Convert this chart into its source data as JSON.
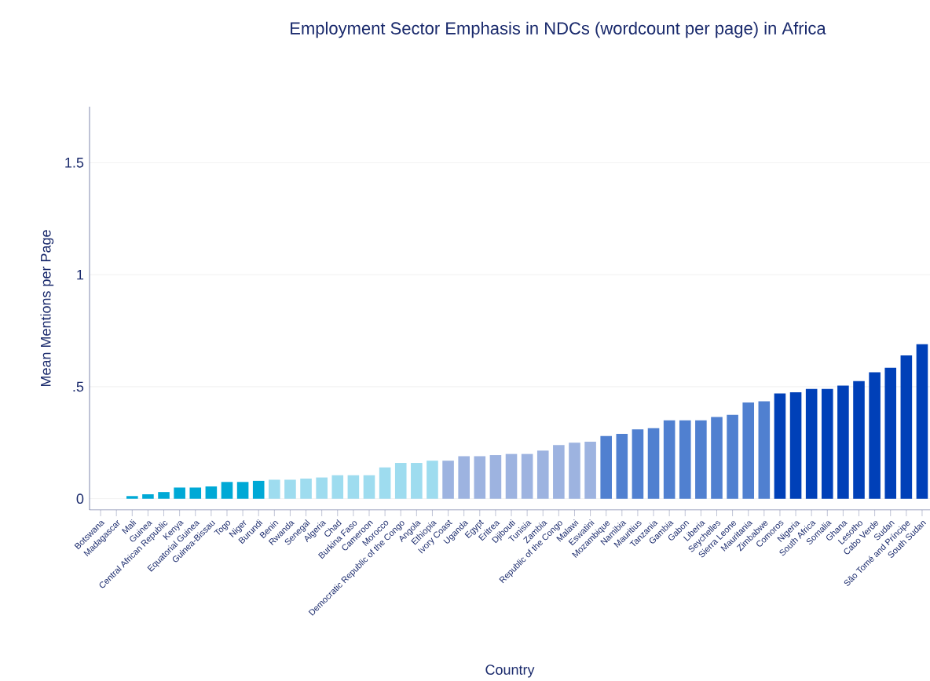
{
  "chart_data": {
    "type": "bar",
    "title": "Employment Sector Emphasis in NDCs (wordcount per page) in Africa",
    "xlabel": "Country",
    "ylabel": "Mean Mentions per Page",
    "categories": [
      "Botswana",
      "Madagascar",
      "Mali",
      "Guinea",
      "Central African Republic",
      "Kenya",
      "Equatorial Guinea",
      "Guinea-Bissau",
      "Togo",
      "Niger",
      "Burundi",
      "Benin",
      "Rwanda",
      "Senegal",
      "Algeria",
      "Chad",
      "Burkina Faso",
      "Cameroon",
      "Morocco",
      "Democratic Republic of the Congo",
      "Angola",
      "Ethiopia",
      "Ivory Coast",
      "Uganda",
      "Egypt",
      "Eritrea",
      "Djibouti",
      "Tunisia",
      "Zambia",
      "Republic of the Congo",
      "Malawi",
      "Eswatini",
      "Mozambique",
      "Namibia",
      "Mauritius",
      "Tanzania",
      "Gambia",
      "Gabon",
      "Liberia",
      "Seychelles",
      "Sierra Leone",
      "Mauritania",
      "Zimbabwe",
      "Comoros",
      "Nigeria",
      "South Africa",
      "Somalia",
      "Ghana",
      "Lesotho",
      "Cabo Verde",
      "Sudan",
      "São Tomé and Príncipe",
      "South Sudan"
    ],
    "values": [
      0,
      0,
      0.012,
      0.02,
      0.03,
      0.05,
      0.05,
      0.055,
      0.075,
      0.075,
      0.08,
      0.085,
      0.085,
      0.09,
      0.095,
      0.105,
      0.105,
      0.105,
      0.14,
      0.16,
      0.16,
      0.17,
      0.17,
      0.19,
      0.19,
      0.195,
      0.2,
      0.2,
      0.215,
      0.24,
      0.25,
      0.255,
      0.28,
      0.29,
      0.31,
      0.315,
      0.35,
      0.35,
      0.35,
      0.365,
      0.375,
      0.43,
      0.435,
      0.47,
      0.475,
      0.49,
      0.49,
      0.505,
      0.525,
      0.565,
      0.585,
      0.64,
      0.69
    ],
    "colors": [
      "#00a9d6",
      "#00a9d6",
      "#00a9d6",
      "#00a9d6",
      "#00a9d6",
      "#00a9d6",
      "#00a9d6",
      "#00a9d6",
      "#00a9d6",
      "#00a9d6",
      "#00a9d6",
      "#9edcef",
      "#9edcef",
      "#9edcef",
      "#9edcef",
      "#9edcef",
      "#9edcef",
      "#9edcef",
      "#9edcef",
      "#9edcef",
      "#9edcef",
      "#9edcef",
      "#9db3e0",
      "#9db3e0",
      "#9db3e0",
      "#9db3e0",
      "#9db3e0",
      "#9db3e0",
      "#9db3e0",
      "#9db3e0",
      "#9db3e0",
      "#9db3e0",
      "#5080d0",
      "#5080d0",
      "#5080d0",
      "#5080d0",
      "#5080d0",
      "#5080d0",
      "#5080d0",
      "#5080d0",
      "#5080d0",
      "#5080d0",
      "#5080d0",
      "#0040b8",
      "#0040b8",
      "#0040b8",
      "#0040b8",
      "#0040b8",
      "#0040b8",
      "#0040b8",
      "#0040b8",
      "#0040b8",
      "#0040b8"
    ],
    "ylim": [
      -0.05,
      1.75
    ],
    "yticks": [
      0,
      {
        "value": 0.5,
        "label": ".5"
      },
      1,
      1.5
    ],
    "grid": "y"
  }
}
